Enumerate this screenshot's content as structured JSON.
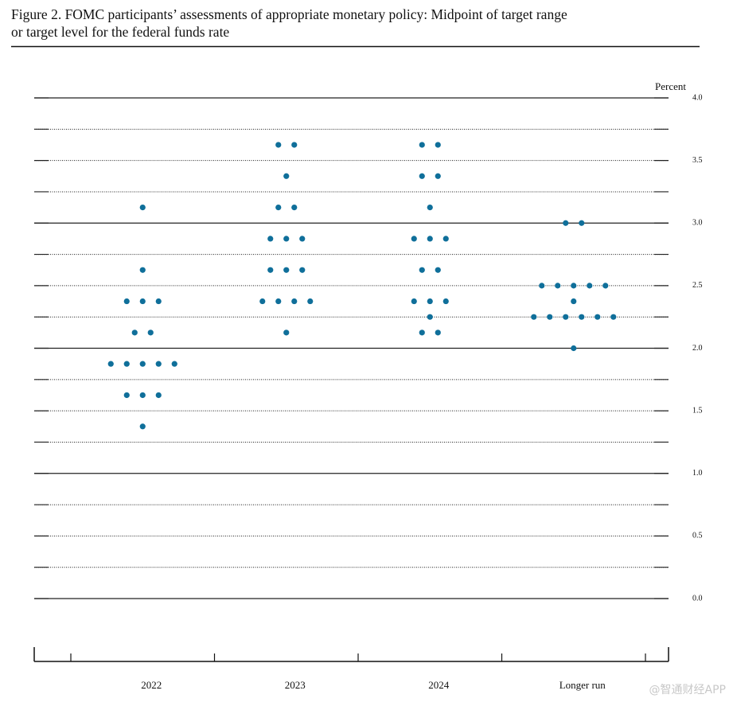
{
  "chart_data": {
    "type": "dot",
    "title": [
      "Figure 2.  FOMC participants’ assessments of appropriate monetary policy: Midpoint of target range",
      "or target level for the federal funds rate"
    ],
    "y_axis_label": "Percent",
    "categories": [
      "2022",
      "2023",
      "2024",
      "Longer run"
    ],
    "values": [
      [
        3.125,
        2.625,
        2.375,
        2.375,
        2.375,
        2.125,
        2.125,
        1.875,
        1.875,
        1.875,
        1.875,
        1.875,
        1.625,
        1.625,
        1.625,
        1.375
      ],
      [
        3.625,
        3.625,
        3.375,
        3.125,
        3.125,
        2.875,
        2.875,
        2.875,
        2.625,
        2.625,
        2.625,
        2.375,
        2.375,
        2.375,
        2.375,
        2.125
      ],
      [
        3.625,
        3.625,
        3.375,
        3.375,
        3.125,
        2.875,
        2.875,
        2.875,
        2.625,
        2.625,
        2.375,
        2.375,
        2.375,
        2.25,
        2.125,
        2.125
      ],
      [
        3.0,
        3.0,
        2.5,
        2.5,
        2.5,
        2.5,
        2.5,
        2.375,
        2.25,
        2.25,
        2.25,
        2.25,
        2.25,
        2.25,
        2.0
      ]
    ],
    "color": "#0f6f9a",
    "ylim": [
      0,
      4
    ],
    "yticks": [
      {
        "value": 0,
        "label": "0.0"
      },
      0.5,
      {
        "value": 1,
        "label": "1.0"
      },
      1.5,
      {
        "value": 2,
        "label": "2.0"
      },
      2.5,
      {
        "value": 3,
        "label": "3.0"
      },
      3.5,
      {
        "value": 4,
        "label": "4.0"
      }
    ],
    "minor_yticks": [
      0.25,
      0.75,
      1.25,
      1.75,
      2.25,
      2.75,
      3.25,
      3.75
    ],
    "grid": true,
    "watermark": "@智通财经APP"
  }
}
